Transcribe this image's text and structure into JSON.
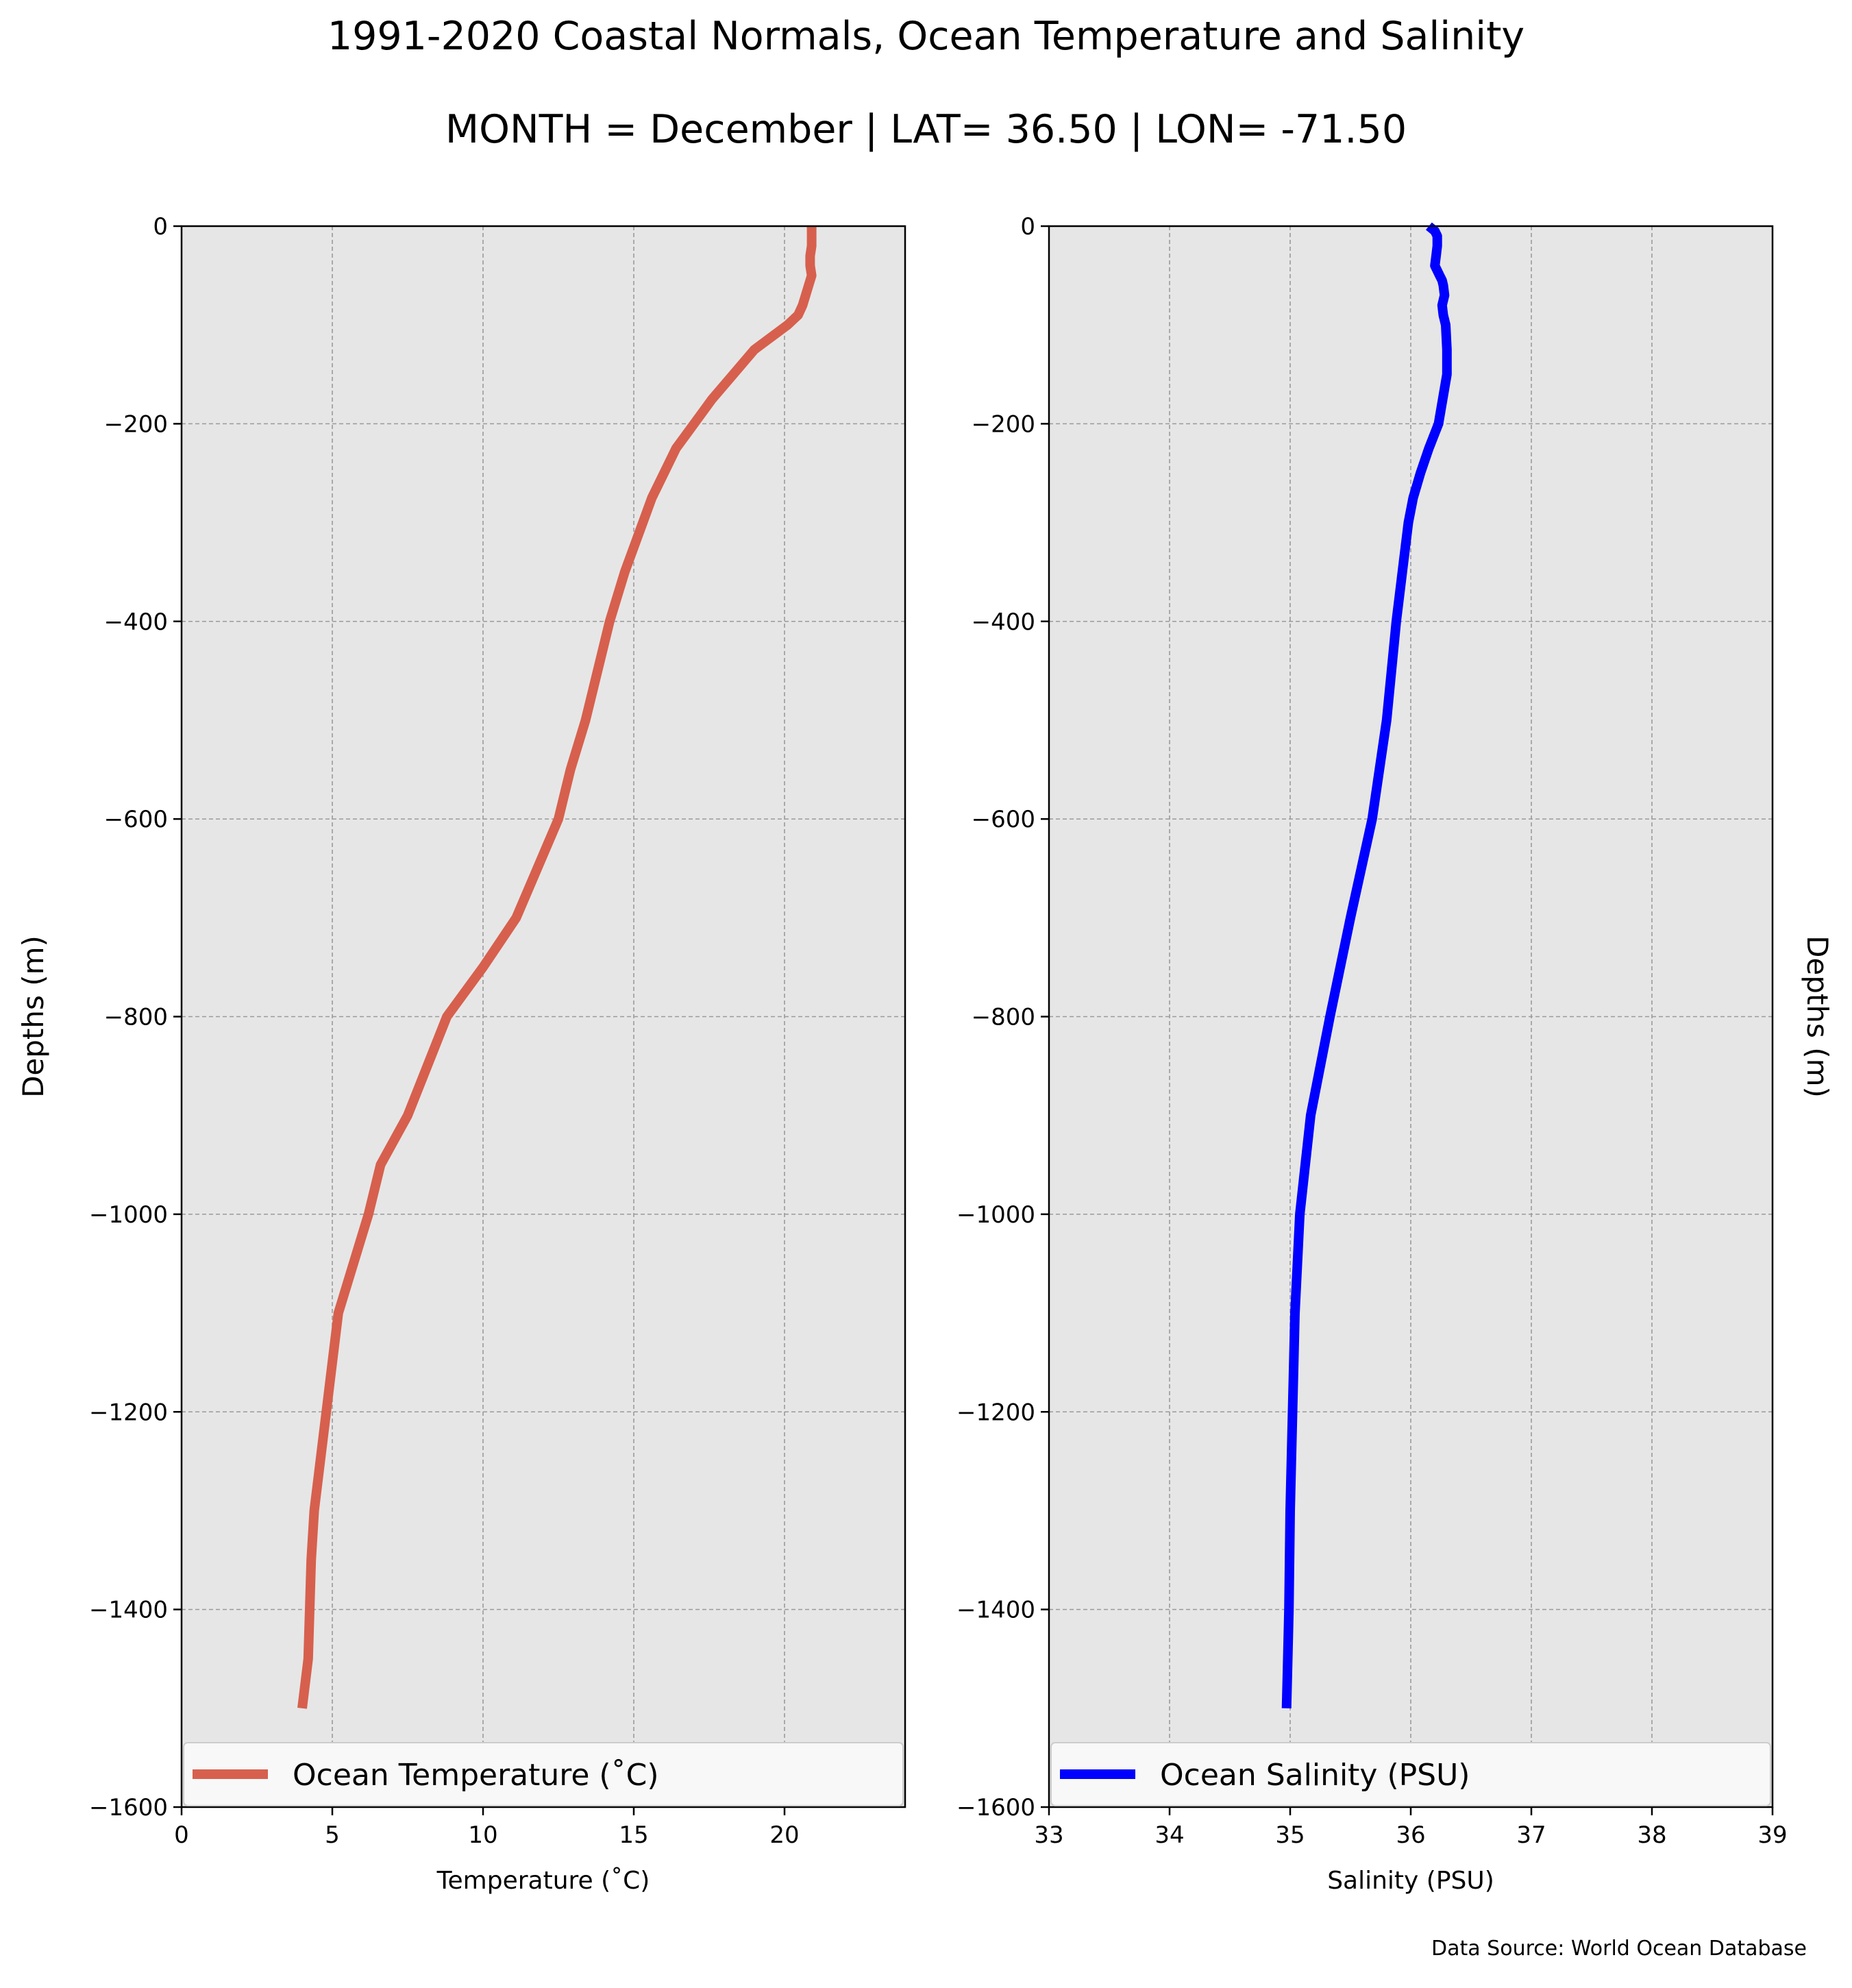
{
  "figure": {
    "title": "1991-2020 Coastal Normals, Ocean Temperature and Salinity",
    "subtitle": "MONTH = December | LAT= 36.50 | LON= -71.50",
    "source": "Data Source: World Ocean Database"
  },
  "chart_data": [
    {
      "type": "line",
      "xlabel": "Temperature (˚C)",
      "ylabel": "Depths (m)",
      "xlim": [
        0,
        24
      ],
      "ylim": [
        -1600,
        0
      ],
      "xticks": [
        0,
        5,
        10,
        15,
        20
      ],
      "yticks": [
        0,
        -200,
        -400,
        -600,
        -800,
        -1000,
        -1200,
        -1400,
        -1600
      ],
      "grid": true,
      "legend_position": "lower center",
      "series": [
        {
          "name": "Ocean Temperature (˚C)",
          "color": "#d6604d",
          "points": [
            [
              20.9,
              0
            ],
            [
              20.9,
              -10
            ],
            [
              20.9,
              -20
            ],
            [
              20.85,
              -30
            ],
            [
              20.85,
              -40
            ],
            [
              20.9,
              -50
            ],
            [
              20.8,
              -60
            ],
            [
              20.7,
              -70
            ],
            [
              20.6,
              -80
            ],
            [
              20.45,
              -90
            ],
            [
              20.1,
              -100
            ],
            [
              19.0,
              -125
            ],
            [
              18.3,
              -150
            ],
            [
              17.6,
              -175
            ],
            [
              17.0,
              -200
            ],
            [
              16.4,
              -225
            ],
            [
              16.0,
              -250
            ],
            [
              15.6,
              -275
            ],
            [
              15.3,
              -300
            ],
            [
              15.0,
              -325
            ],
            [
              14.7,
              -350
            ],
            [
              14.45,
              -375
            ],
            [
              14.2,
              -400
            ],
            [
              13.4,
              -500
            ],
            [
              12.9,
              -550
            ],
            [
              12.5,
              -600
            ],
            [
              11.1,
              -700
            ],
            [
              10.0,
              -750
            ],
            [
              8.8,
              -800
            ],
            [
              7.5,
              -900
            ],
            [
              6.6,
              -950
            ],
            [
              6.2,
              -1000
            ],
            [
              5.7,
              -1050
            ],
            [
              5.2,
              -1100
            ],
            [
              5.0,
              -1150
            ],
            [
              4.8,
              -1200
            ],
            [
              4.6,
              -1250
            ],
            [
              4.4,
              -1300
            ],
            [
              4.3,
              -1350
            ],
            [
              4.25,
              -1400
            ],
            [
              4.2,
              -1450
            ],
            [
              4.0,
              -1500
            ]
          ]
        }
      ]
    },
    {
      "type": "line",
      "xlabel": "Salinity (PSU)",
      "ylabel": "Depths (m)",
      "xlim": [
        33,
        39
      ],
      "ylim": [
        -1600,
        0
      ],
      "xticks": [
        33,
        34,
        35,
        36,
        37,
        38,
        39
      ],
      "yticks": [
        0,
        -200,
        -400,
        -600,
        -800,
        -1000,
        -1200,
        -1400,
        -1600
      ],
      "grid": true,
      "legend_position": "lower center",
      "series": [
        {
          "name": "Ocean Salinity (PSU)",
          "color": "#0000ff",
          "points": [
            [
              36.15,
              0
            ],
            [
              36.2,
              -5
            ],
            [
              36.22,
              -10
            ],
            [
              36.22,
              -20
            ],
            [
              36.21,
              -30
            ],
            [
              36.2,
              -40
            ],
            [
              36.24,
              -50
            ],
            [
              36.26,
              -55
            ],
            [
              36.27,
              -60
            ],
            [
              36.28,
              -70
            ],
            [
              36.26,
              -80
            ],
            [
              36.27,
              -90
            ],
            [
              36.29,
              -100
            ],
            [
              36.3,
              -125
            ],
            [
              36.3,
              -150
            ],
            [
              36.23,
              -200
            ],
            [
              36.15,
              -225
            ],
            [
              36.08,
              -250
            ],
            [
              36.02,
              -275
            ],
            [
              35.98,
              -300
            ],
            [
              35.93,
              -350
            ],
            [
              35.88,
              -400
            ],
            [
              35.8,
              -500
            ],
            [
              35.68,
              -600
            ],
            [
              35.5,
              -700
            ],
            [
              35.33,
              -800
            ],
            [
              35.17,
              -900
            ],
            [
              35.08,
              -1000
            ],
            [
              35.04,
              -1100
            ],
            [
              35.02,
              -1200
            ],
            [
              35.0,
              -1300
            ],
            [
              34.99,
              -1400
            ],
            [
              34.98,
              -1450
            ],
            [
              34.97,
              -1500
            ]
          ]
        }
      ]
    }
  ]
}
